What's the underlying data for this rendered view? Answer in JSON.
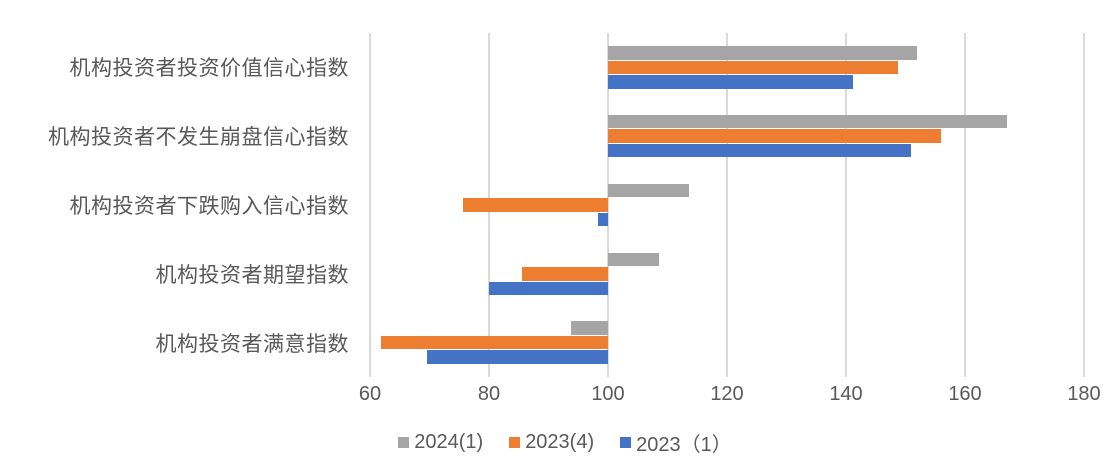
{
  "chart_data": {
    "type": "bar",
    "orientation": "horizontal",
    "title": "",
    "xlabel": "",
    "ylabel": "",
    "categories": [
      "机构投资者投资价值信心指数",
      "机构投资者不发生崩盘信心指数",
      "机构投资者下跌购入信心指数",
      "机构投资者期望指数",
      "机构投资者满意指数"
    ],
    "series": [
      {
        "name": "2024(1)",
        "color": "#A5A5A5",
        "values": [
          152.0,
          167.0,
          113.6,
          108.5,
          93.8
        ]
      },
      {
        "name": "2023(4)",
        "color": "#ED7D31",
        "values": [
          148.7,
          156.0,
          75.6,
          85.5,
          61.9
        ]
      },
      {
        "name": "2023（1）",
        "color": "#4472C4",
        "values": [
          141.2,
          151.0,
          98.3,
          80.0,
          69.5
        ]
      }
    ],
    "x_axis": {
      "min": 60,
      "max": 180,
      "step": 20,
      "ticks": [
        60,
        80,
        100,
        120,
        140,
        160,
        180
      ],
      "baseline": 100
    },
    "grid": true,
    "legend_position": "bottom",
    "colors": {
      "gridline": "#D9D9D9",
      "axis_text": "#595959",
      "background": "#FFFFFF"
    }
  }
}
